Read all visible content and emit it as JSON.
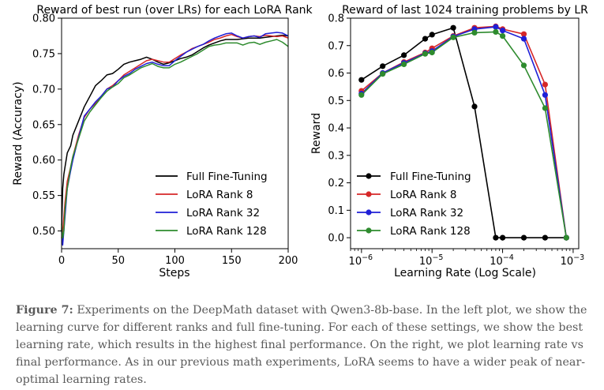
{
  "colors": {
    "full": "#000000",
    "r8": "#d62728",
    "r32": "#1f1fd6",
    "r128": "#2e8b2e"
  },
  "chart_data": [
    {
      "type": "line",
      "title": "Reward of best run (over LRs) for each LoRA Rank",
      "xlabel": "Steps",
      "ylabel": "Reward (Accuracy)",
      "xlim": [
        0,
        200
      ],
      "ylim": [
        0.475,
        0.8
      ],
      "xticks": [
        0,
        50,
        100,
        150,
        200
      ],
      "yticks": [
        0.5,
        0.55,
        0.6,
        0.65,
        0.7,
        0.75,
        0.8
      ],
      "ytick_labels": [
        "0.50",
        "0.55",
        "0.60",
        "0.65",
        "0.70",
        "0.75",
        "0.80"
      ],
      "legend_position": "lower-right",
      "x": [
        0,
        1,
        2,
        3,
        5,
        8,
        10,
        15,
        20,
        25,
        30,
        35,
        40,
        45,
        50,
        55,
        60,
        65,
        70,
        75,
        80,
        85,
        90,
        95,
        100,
        105,
        110,
        115,
        120,
        125,
        130,
        135,
        140,
        145,
        150,
        155,
        160,
        165,
        170,
        175,
        180,
        185,
        190,
        195,
        200
      ],
      "series": [
        {
          "name": "Full Fine-Tuning",
          "color_key": "full",
          "values": [
            0.5,
            0.56,
            0.58,
            0.59,
            0.61,
            0.62,
            0.635,
            0.655,
            0.675,
            0.69,
            0.705,
            0.712,
            0.72,
            0.722,
            0.728,
            0.735,
            0.738,
            0.74,
            0.742,
            0.745,
            0.742,
            0.738,
            0.735,
            0.737,
            0.74,
            0.743,
            0.745,
            0.748,
            0.753,
            0.758,
            0.762,
            0.765,
            0.768,
            0.77,
            0.77,
            0.77,
            0.771,
            0.772,
            0.772,
            0.772,
            0.773,
            0.774,
            0.775,
            0.776,
            0.775
          ]
        },
        {
          "name": "LoRA Rank 8",
          "color_key": "r8",
          "values": [
            0.49,
            0.5,
            0.52,
            0.54,
            0.57,
            0.59,
            0.605,
            0.635,
            0.66,
            0.672,
            0.68,
            0.69,
            0.7,
            0.705,
            0.712,
            0.72,
            0.725,
            0.73,
            0.735,
            0.74,
            0.742,
            0.74,
            0.738,
            0.738,
            0.743,
            0.748,
            0.752,
            0.757,
            0.76,
            0.763,
            0.766,
            0.77,
            0.772,
            0.775,
            0.777,
            0.774,
            0.772,
            0.774,
            0.775,
            0.774,
            0.776,
            0.775,
            0.774,
            0.775,
            0.772
          ]
        },
        {
          "name": "LoRA Rank 32",
          "color_key": "r32",
          "values": [
            0.5,
            0.48,
            0.5,
            0.52,
            0.56,
            0.585,
            0.6,
            0.632,
            0.662,
            0.672,
            0.682,
            0.69,
            0.7,
            0.703,
            0.712,
            0.718,
            0.722,
            0.728,
            0.732,
            0.736,
            0.738,
            0.735,
            0.733,
            0.733,
            0.74,
            0.746,
            0.752,
            0.756,
            0.76,
            0.763,
            0.768,
            0.772,
            0.775,
            0.778,
            0.779,
            0.775,
            0.772,
            0.774,
            0.775,
            0.773,
            0.778,
            0.779,
            0.78,
            0.779,
            0.775
          ]
        },
        {
          "name": "LoRA Rank 128",
          "color_key": "r128",
          "values": [
            0.51,
            0.49,
            0.5,
            0.53,
            0.56,
            0.59,
            0.605,
            0.63,
            0.655,
            0.668,
            0.678,
            0.688,
            0.697,
            0.703,
            0.708,
            0.716,
            0.72,
            0.725,
            0.73,
            0.733,
            0.736,
            0.732,
            0.73,
            0.73,
            0.735,
            0.738,
            0.742,
            0.746,
            0.75,
            0.755,
            0.76,
            0.762,
            0.763,
            0.765,
            0.765,
            0.765,
            0.762,
            0.765,
            0.766,
            0.763,
            0.766,
            0.768,
            0.77,
            0.766,
            0.76
          ]
        }
      ]
    },
    {
      "type": "line",
      "title": "Reward of last 1024 training problems by LR",
      "xlabel": "Learning Rate (Log Scale)",
      "ylabel": "Reward",
      "xscale": "log",
      "xlim": [
        7e-07,
        0.0012
      ],
      "ylim": [
        -0.04,
        0.8
      ],
      "xticks": [
        1e-06,
        1e-05,
        0.0001,
        0.001
      ],
      "xtick_base": "10",
      "xtick_exponents": [
        "−6",
        "−5",
        "−4",
        "−3"
      ],
      "yticks": [
        0.0,
        0.1,
        0.2,
        0.3,
        0.4,
        0.5,
        0.6,
        0.7,
        0.8
      ],
      "ytick_labels": [
        "0.0",
        "0.1",
        "0.2",
        "0.3",
        "0.4",
        "0.5",
        "0.6",
        "0.7",
        "0.8"
      ],
      "legend_position": "lower-left",
      "series": [
        {
          "name": "Full Fine-Tuning",
          "color_key": "full",
          "x": [
            1e-06,
            2e-06,
            4e-06,
            8e-06,
            1e-05,
            2e-05,
            4e-05,
            8e-05,
            0.0001,
            0.0002,
            0.0004,
            0.0008
          ],
          "values": [
            0.575,
            0.625,
            0.665,
            0.725,
            0.74,
            0.765,
            0.478,
            0.0,
            0.0,
            0.0,
            0.0,
            0.0
          ]
        },
        {
          "name": "LoRA Rank 8",
          "color_key": "r8",
          "x": [
            1e-06,
            2e-06,
            4e-06,
            8e-06,
            1e-05,
            2e-05,
            4e-05,
            8e-05,
            0.0001,
            0.0002,
            0.0004,
            0.0008
          ],
          "values": [
            0.535,
            0.6,
            0.64,
            0.675,
            0.69,
            0.735,
            0.765,
            0.77,
            0.76,
            0.742,
            0.558,
            0.0
          ]
        },
        {
          "name": "LoRA Rank 32",
          "color_key": "r32",
          "x": [
            1e-06,
            2e-06,
            4e-06,
            8e-06,
            1e-05,
            2e-05,
            4e-05,
            8e-05,
            0.0001,
            0.0002,
            0.0004,
            0.0008
          ],
          "values": [
            0.525,
            0.6,
            0.637,
            0.672,
            0.68,
            0.733,
            0.76,
            0.768,
            0.755,
            0.725,
            0.52,
            0.0
          ]
        },
        {
          "name": "LoRA Rank 128",
          "color_key": "r128",
          "x": [
            1e-06,
            2e-06,
            4e-06,
            8e-06,
            1e-05,
            2e-05,
            4e-05,
            8e-05,
            0.0001,
            0.0002,
            0.0004,
            0.0008
          ],
          "values": [
            0.52,
            0.597,
            0.632,
            0.67,
            0.675,
            0.73,
            0.747,
            0.75,
            0.735,
            0.628,
            0.472,
            0.0
          ]
        }
      ]
    }
  ],
  "caption": {
    "label": "Figure 7:",
    "text": " Experiments on the DeepMath dataset with Qwen3-8b-base. In the left plot, we show the learning curve for different ranks and full fine-tuning. For each of these settings, we show the best learning rate, which results in the highest final performance. On the right, we plot learning rate vs final performance. As in our previous math experiments, LoRA seems to have a wider peak of near-optimal learning rates."
  }
}
